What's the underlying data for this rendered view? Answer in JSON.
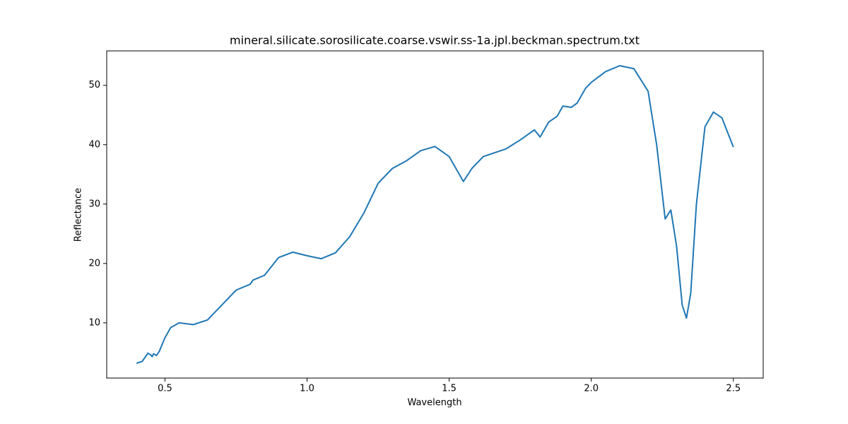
{
  "chart_data": {
    "type": "line",
    "title": "mineral.silicate.sorosilicate.coarse.vswir.ss-1a.jpl.beckman.spectrum.txt",
    "x_label": "Wavelength",
    "y_label": "Reflectance",
    "x": [
      0.4,
      0.42,
      0.44,
      0.45,
      0.455,
      0.46,
      0.47,
      0.48,
      0.5,
      0.52,
      0.55,
      0.6,
      0.65,
      0.7,
      0.75,
      0.8,
      0.81,
      0.85,
      0.9,
      0.95,
      1.0,
      1.05,
      1.1,
      1.15,
      1.2,
      1.25,
      1.3,
      1.35,
      1.4,
      1.45,
      1.5,
      1.55,
      1.58,
      1.62,
      1.7,
      1.75,
      1.8,
      1.82,
      1.85,
      1.88,
      1.9,
      1.93,
      1.95,
      1.98,
      2.0,
      2.05,
      2.1,
      2.15,
      2.2,
      2.23,
      2.26,
      2.28,
      2.3,
      2.32,
      2.335,
      2.35,
      2.37,
      2.4,
      2.43,
      2.46,
      2.5
    ],
    "series": [
      {
        "name": "Reflectance",
        "color": "#1f77b4",
        "values": [
          3.2,
          3.5,
          4.9,
          4.6,
          4.3,
          4.8,
          4.5,
          5.2,
          7.5,
          9.2,
          10.0,
          9.7,
          10.5,
          13.0,
          15.5,
          16.5,
          17.2,
          18.0,
          21.0,
          21.9,
          21.3,
          20.8,
          21.8,
          24.5,
          28.5,
          33.5,
          36.0,
          37.3,
          39.0,
          39.7,
          38.0,
          33.8,
          36.0,
          38.0,
          39.3,
          40.8,
          42.5,
          41.3,
          43.8,
          44.8,
          46.5,
          46.3,
          47.0,
          49.5,
          50.5,
          52.3,
          53.3,
          52.8,
          49.0,
          40.0,
          27.5,
          29.0,
          23.0,
          13.0,
          10.8,
          15.0,
          30.0,
          43.0,
          45.5,
          44.5,
          39.6
        ]
      }
    ],
    "xlim": [
      0.295,
      2.605
    ],
    "ylim": [
      0.7,
      55.8
    ],
    "xticks": [
      0.5,
      1.0,
      1.5,
      2.0,
      2.5
    ],
    "yticks": [
      10,
      20,
      30,
      40,
      50
    ]
  }
}
